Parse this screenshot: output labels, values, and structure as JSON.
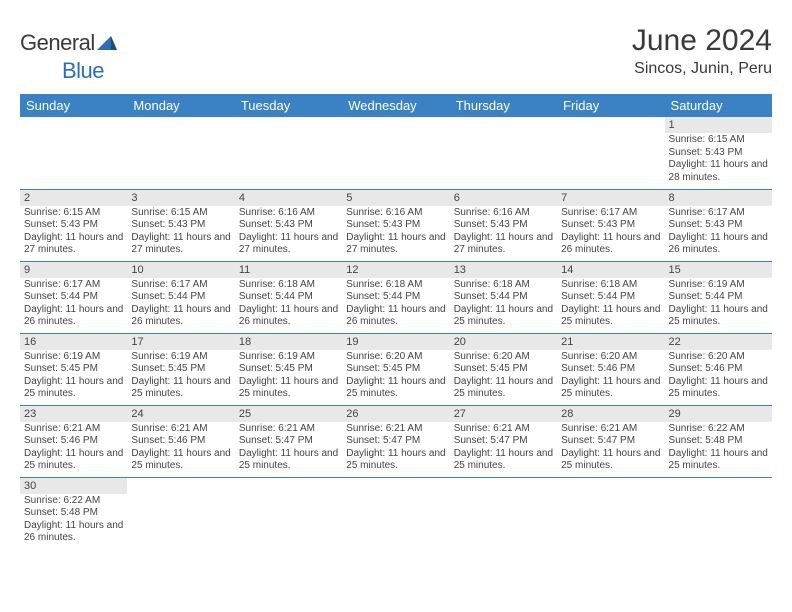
{
  "brand": {
    "name_a": "General",
    "name_b": "Blue"
  },
  "title": "June 2024",
  "location": "Sincos, Junin, Peru",
  "colors": {
    "header_bg": "#3b82c4",
    "header_text": "#ffffff",
    "daynum_bg": "#e8e8e8",
    "border": "#3b82c4",
    "text": "#444444",
    "brand_dark": "#3a3a3a",
    "brand_blue": "#2d6fb5"
  },
  "day_names": [
    "Sunday",
    "Monday",
    "Tuesday",
    "Wednesday",
    "Thursday",
    "Friday",
    "Saturday"
  ],
  "weeks": [
    [
      {
        "day": "",
        "sunrise": "",
        "sunset": "",
        "daylight": ""
      },
      {
        "day": "",
        "sunrise": "",
        "sunset": "",
        "daylight": ""
      },
      {
        "day": "",
        "sunrise": "",
        "sunset": "",
        "daylight": ""
      },
      {
        "day": "",
        "sunrise": "",
        "sunset": "",
        "daylight": ""
      },
      {
        "day": "",
        "sunrise": "",
        "sunset": "",
        "daylight": ""
      },
      {
        "day": "",
        "sunrise": "",
        "sunset": "",
        "daylight": ""
      },
      {
        "day": "1",
        "sunrise": "Sunrise: 6:15 AM",
        "sunset": "Sunset: 5:43 PM",
        "daylight": "Daylight: 11 hours and 28 minutes."
      }
    ],
    [
      {
        "day": "2",
        "sunrise": "Sunrise: 6:15 AM",
        "sunset": "Sunset: 5:43 PM",
        "daylight": "Daylight: 11 hours and 27 minutes."
      },
      {
        "day": "3",
        "sunrise": "Sunrise: 6:15 AM",
        "sunset": "Sunset: 5:43 PM",
        "daylight": "Daylight: 11 hours and 27 minutes."
      },
      {
        "day": "4",
        "sunrise": "Sunrise: 6:16 AM",
        "sunset": "Sunset: 5:43 PM",
        "daylight": "Daylight: 11 hours and 27 minutes."
      },
      {
        "day": "5",
        "sunrise": "Sunrise: 6:16 AM",
        "sunset": "Sunset: 5:43 PM",
        "daylight": "Daylight: 11 hours and 27 minutes."
      },
      {
        "day": "6",
        "sunrise": "Sunrise: 6:16 AM",
        "sunset": "Sunset: 5:43 PM",
        "daylight": "Daylight: 11 hours and 27 minutes."
      },
      {
        "day": "7",
        "sunrise": "Sunrise: 6:17 AM",
        "sunset": "Sunset: 5:43 PM",
        "daylight": "Daylight: 11 hours and 26 minutes."
      },
      {
        "day": "8",
        "sunrise": "Sunrise: 6:17 AM",
        "sunset": "Sunset: 5:43 PM",
        "daylight": "Daylight: 11 hours and 26 minutes."
      }
    ],
    [
      {
        "day": "9",
        "sunrise": "Sunrise: 6:17 AM",
        "sunset": "Sunset: 5:44 PM",
        "daylight": "Daylight: 11 hours and 26 minutes."
      },
      {
        "day": "10",
        "sunrise": "Sunrise: 6:17 AM",
        "sunset": "Sunset: 5:44 PM",
        "daylight": "Daylight: 11 hours and 26 minutes."
      },
      {
        "day": "11",
        "sunrise": "Sunrise: 6:18 AM",
        "sunset": "Sunset: 5:44 PM",
        "daylight": "Daylight: 11 hours and 26 minutes."
      },
      {
        "day": "12",
        "sunrise": "Sunrise: 6:18 AM",
        "sunset": "Sunset: 5:44 PM",
        "daylight": "Daylight: 11 hours and 26 minutes."
      },
      {
        "day": "13",
        "sunrise": "Sunrise: 6:18 AM",
        "sunset": "Sunset: 5:44 PM",
        "daylight": "Daylight: 11 hours and 25 minutes."
      },
      {
        "day": "14",
        "sunrise": "Sunrise: 6:18 AM",
        "sunset": "Sunset: 5:44 PM",
        "daylight": "Daylight: 11 hours and 25 minutes."
      },
      {
        "day": "15",
        "sunrise": "Sunrise: 6:19 AM",
        "sunset": "Sunset: 5:44 PM",
        "daylight": "Daylight: 11 hours and 25 minutes."
      }
    ],
    [
      {
        "day": "16",
        "sunrise": "Sunrise: 6:19 AM",
        "sunset": "Sunset: 5:45 PM",
        "daylight": "Daylight: 11 hours and 25 minutes."
      },
      {
        "day": "17",
        "sunrise": "Sunrise: 6:19 AM",
        "sunset": "Sunset: 5:45 PM",
        "daylight": "Daylight: 11 hours and 25 minutes."
      },
      {
        "day": "18",
        "sunrise": "Sunrise: 6:19 AM",
        "sunset": "Sunset: 5:45 PM",
        "daylight": "Daylight: 11 hours and 25 minutes."
      },
      {
        "day": "19",
        "sunrise": "Sunrise: 6:20 AM",
        "sunset": "Sunset: 5:45 PM",
        "daylight": "Daylight: 11 hours and 25 minutes."
      },
      {
        "day": "20",
        "sunrise": "Sunrise: 6:20 AM",
        "sunset": "Sunset: 5:45 PM",
        "daylight": "Daylight: 11 hours and 25 minutes."
      },
      {
        "day": "21",
        "sunrise": "Sunrise: 6:20 AM",
        "sunset": "Sunset: 5:46 PM",
        "daylight": "Daylight: 11 hours and 25 minutes."
      },
      {
        "day": "22",
        "sunrise": "Sunrise: 6:20 AM",
        "sunset": "Sunset: 5:46 PM",
        "daylight": "Daylight: 11 hours and 25 minutes."
      }
    ],
    [
      {
        "day": "23",
        "sunrise": "Sunrise: 6:21 AM",
        "sunset": "Sunset: 5:46 PM",
        "daylight": "Daylight: 11 hours and 25 minutes."
      },
      {
        "day": "24",
        "sunrise": "Sunrise: 6:21 AM",
        "sunset": "Sunset: 5:46 PM",
        "daylight": "Daylight: 11 hours and 25 minutes."
      },
      {
        "day": "25",
        "sunrise": "Sunrise: 6:21 AM",
        "sunset": "Sunset: 5:47 PM",
        "daylight": "Daylight: 11 hours and 25 minutes."
      },
      {
        "day": "26",
        "sunrise": "Sunrise: 6:21 AM",
        "sunset": "Sunset: 5:47 PM",
        "daylight": "Daylight: 11 hours and 25 minutes."
      },
      {
        "day": "27",
        "sunrise": "Sunrise: 6:21 AM",
        "sunset": "Sunset: 5:47 PM",
        "daylight": "Daylight: 11 hours and 25 minutes."
      },
      {
        "day": "28",
        "sunrise": "Sunrise: 6:21 AM",
        "sunset": "Sunset: 5:47 PM",
        "daylight": "Daylight: 11 hours and 25 minutes."
      },
      {
        "day": "29",
        "sunrise": "Sunrise: 6:22 AM",
        "sunset": "Sunset: 5:48 PM",
        "daylight": "Daylight: 11 hours and 25 minutes."
      }
    ],
    [
      {
        "day": "30",
        "sunrise": "Sunrise: 6:22 AM",
        "sunset": "Sunset: 5:48 PM",
        "daylight": "Daylight: 11 hours and 26 minutes."
      },
      {
        "day": "",
        "sunrise": "",
        "sunset": "",
        "daylight": ""
      },
      {
        "day": "",
        "sunrise": "",
        "sunset": "",
        "daylight": ""
      },
      {
        "day": "",
        "sunrise": "",
        "sunset": "",
        "daylight": ""
      },
      {
        "day": "",
        "sunrise": "",
        "sunset": "",
        "daylight": ""
      },
      {
        "day": "",
        "sunrise": "",
        "sunset": "",
        "daylight": ""
      },
      {
        "day": "",
        "sunrise": "",
        "sunset": "",
        "daylight": ""
      }
    ]
  ]
}
